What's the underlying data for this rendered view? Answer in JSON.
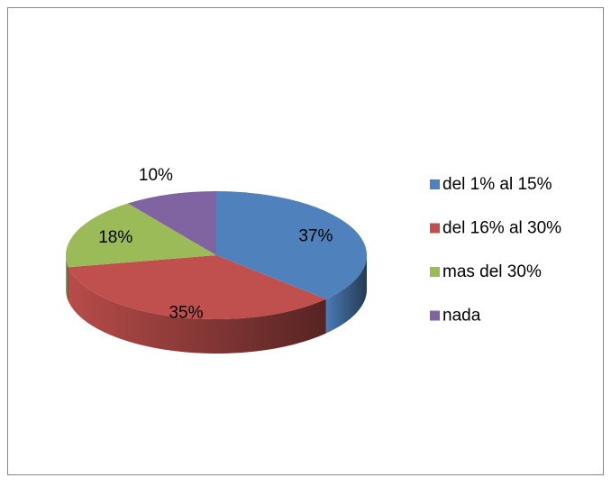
{
  "chart_data": {
    "type": "pie",
    "categories": [
      "del 1% al 15%",
      "del 16% al 30%",
      "mas del 30%",
      "nada"
    ],
    "values": [
      37,
      35,
      18,
      10
    ],
    "value_labels": [
      "37%",
      "35%",
      "18%",
      "10%"
    ],
    "colors": [
      "#4f81bd",
      "#c0504d",
      "#9bbb59",
      "#8064a2"
    ],
    "legend": "right"
  }
}
